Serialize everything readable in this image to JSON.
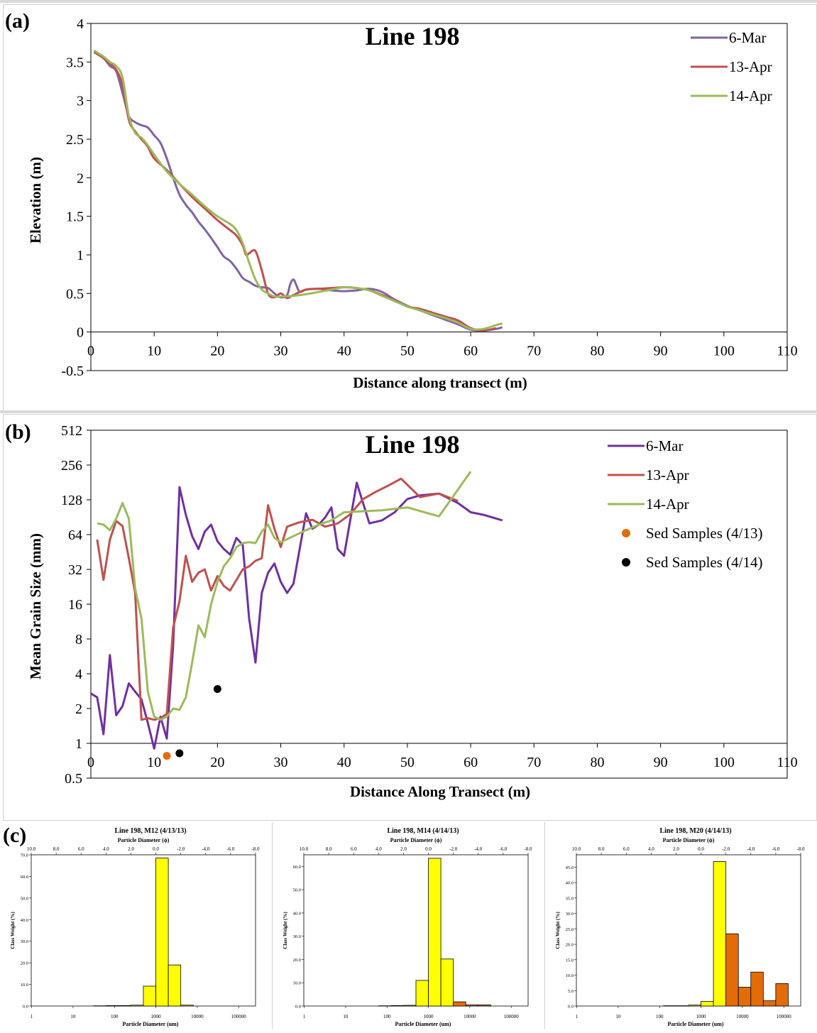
{
  "colors": {
    "mar6": "#8064a2",
    "apr13": "#c0504d",
    "apr14": "#9bbb59",
    "mar6_b": "#7030a0",
    "sed13": "#e36c09",
    "sed14": "#000000",
    "sand": "#ffff00",
    "gravel": "#e36c09"
  },
  "panel_a": {
    "label": "(a)",
    "chart_data": {
      "type": "line",
      "title": "Line 198",
      "xlabel": "Distance along transect (m)",
      "ylabel": "Elevation (m)",
      "xlim": [
        0,
        110
      ],
      "ylim": [
        -0.5,
        4
      ],
      "xticks": [
        "0",
        "10",
        "20",
        "30",
        "40",
        "50",
        "60",
        "70",
        "80",
        "90",
        "100",
        "110"
      ],
      "yticks": [
        "-0.5",
        "0",
        "0.5",
        "1",
        "1.5",
        "2",
        "2.5",
        "3",
        "3.5",
        "4"
      ],
      "legend_position": "top-right",
      "series": [
        {
          "name": "6-Mar",
          "color": "#8064a2",
          "x": [
            0.5,
            2,
            3,
            4,
            5,
            6,
            7,
            8,
            9,
            10,
            11,
            12,
            13,
            14,
            15,
            16,
            17,
            18,
            19,
            20,
            21,
            22,
            23,
            24,
            25,
            26,
            27,
            28,
            29,
            30,
            31,
            31.5,
            32,
            32.5,
            33,
            34,
            36,
            38,
            40,
            42,
            44,
            46,
            48,
            50,
            52,
            54,
            56,
            58,
            60,
            62,
            64,
            65
          ],
          "y": [
            3.63,
            3.55,
            3.45,
            3.38,
            3.1,
            2.8,
            2.72,
            2.68,
            2.65,
            2.55,
            2.45,
            2.25,
            2.0,
            1.78,
            1.65,
            1.55,
            1.43,
            1.33,
            1.22,
            1.1,
            0.98,
            0.92,
            0.82,
            0.7,
            0.65,
            0.6,
            0.58,
            0.57,
            0.5,
            0.45,
            0.48,
            0.62,
            0.68,
            0.6,
            0.52,
            0.55,
            0.56,
            0.54,
            0.53,
            0.54,
            0.56,
            0.52,
            0.42,
            0.34,
            0.28,
            0.22,
            0.16,
            0.1,
            0.03,
            0.02,
            0.04,
            0.06
          ]
        },
        {
          "name": "13-Apr",
          "color": "#c0504d",
          "x": [
            0.5,
            2,
            3,
            4,
            5,
            6,
            7,
            8,
            9,
            10,
            12,
            14,
            16,
            18,
            20,
            22,
            23,
            24,
            24.5,
            25,
            26,
            27,
            28,
            29,
            30,
            31,
            32,
            34,
            36,
            38,
            40,
            42,
            44,
            46,
            48,
            50,
            52,
            54,
            56,
            58,
            60,
            62,
            64
          ],
          "y": [
            3.63,
            3.55,
            3.48,
            3.4,
            3.2,
            2.75,
            2.6,
            2.5,
            2.4,
            2.25,
            2.1,
            1.92,
            1.75,
            1.6,
            1.45,
            1.32,
            1.25,
            1.12,
            1.0,
            1.02,
            1.05,
            0.8,
            0.5,
            0.45,
            0.5,
            0.44,
            0.48,
            0.55,
            0.56,
            0.57,
            0.58,
            0.57,
            0.54,
            0.48,
            0.41,
            0.33,
            0.3,
            0.25,
            0.2,
            0.15,
            0.05,
            0.02,
            0.05
          ]
        },
        {
          "name": "14-Apr",
          "color": "#9bbb59",
          "x": [
            0.5,
            2,
            3,
            4,
            5,
            6,
            7,
            8,
            9,
            10,
            12,
            14,
            16,
            18,
            20,
            22,
            23,
            24,
            25,
            26,
            27,
            28,
            29,
            30,
            32,
            34,
            36,
            38,
            40,
            42,
            44,
            46,
            48,
            50,
            52,
            54,
            56,
            58,
            60,
            62,
            64,
            65
          ],
          "y": [
            3.65,
            3.57,
            3.5,
            3.45,
            3.3,
            2.8,
            2.58,
            2.52,
            2.42,
            2.3,
            2.08,
            1.92,
            1.78,
            1.63,
            1.5,
            1.4,
            1.32,
            1.15,
            0.9,
            0.68,
            0.55,
            0.5,
            0.46,
            0.46,
            0.47,
            0.49,
            0.52,
            0.55,
            0.58,
            0.57,
            0.54,
            0.47,
            0.4,
            0.33,
            0.28,
            0.23,
            0.18,
            0.12,
            0.04,
            0.04,
            0.09,
            0.11
          ]
        }
      ]
    }
  },
  "panel_b": {
    "label": "(b)",
    "chart_data": {
      "type": "line",
      "title": "Line 198",
      "xlabel": "Distance Along Transect (m)",
      "ylabel": "Mean Grain Size (mm)",
      "xlim": [
        0,
        110
      ],
      "ylim": [
        0.5,
        512
      ],
      "yscale": "log2",
      "xticks": [
        "0",
        "10",
        "20",
        "30",
        "40",
        "50",
        "60",
        "70",
        "80",
        "90",
        "100",
        "110"
      ],
      "yticks": [
        "0.5",
        "1",
        "2",
        "4",
        "8",
        "16",
        "32",
        "64",
        "128",
        "256",
        "512"
      ],
      "legend_position": "top-right",
      "series": [
        {
          "name": "6-Mar",
          "color": "#7030a0",
          "x": [
            0,
            1,
            2,
            3,
            4,
            5,
            6,
            7,
            8,
            9,
            10,
            11,
            12,
            13,
            14,
            15,
            16,
            17,
            18,
            19,
            20,
            21,
            22,
            23,
            24,
            25,
            26,
            27,
            28,
            29,
            30,
            31,
            32,
            34,
            35,
            36,
            37,
            38,
            39,
            40,
            42,
            43,
            44,
            46,
            48,
            50,
            52,
            55,
            58,
            60,
            62,
            65
          ],
          "y": [
            2.7,
            2.5,
            1.2,
            5.8,
            1.75,
            2.1,
            3.3,
            2.8,
            2.4,
            1.5,
            0.9,
            1.7,
            1.1,
            7.0,
            165,
            95,
            62,
            48,
            68,
            78,
            56,
            48,
            43,
            60,
            52,
            12,
            5.0,
            20,
            30,
            36,
            25,
            20,
            24,
            98,
            72,
            78,
            90,
            110,
            48,
            42,
            180,
            120,
            80,
            85,
            100,
            130,
            140,
            145,
            120,
            100,
            95,
            85
          ]
        },
        {
          "name": "13-Apr",
          "color": "#c0504d",
          "x": [
            1,
            2,
            3,
            4,
            5,
            6,
            7,
            8,
            9,
            10,
            11,
            12,
            13,
            14,
            15,
            16,
            17,
            18,
            19,
            20,
            21,
            22,
            23,
            24,
            25,
            26,
            27,
            28,
            29,
            30,
            31,
            33,
            35,
            37,
            39,
            41,
            43,
            45,
            47,
            49,
            52,
            55,
            58
          ],
          "y": [
            58,
            26,
            58,
            84,
            76,
            40,
            20,
            1.6,
            1.65,
            1.6,
            1.65,
            1.8,
            10,
            17,
            42,
            25,
            30,
            32,
            21,
            28,
            23,
            21,
            26,
            32,
            34,
            38,
            40,
            115,
            72,
            50,
            75,
            82,
            86,
            75,
            80,
            96,
            130,
            150,
            170,
            195,
            135,
            145,
            125
          ]
        },
        {
          "name": "14-Apr",
          "color": "#9bbb59",
          "x": [
            1,
            2,
            3,
            4,
            5,
            6,
            7,
            8,
            9,
            10,
            11,
            12,
            13,
            14,
            15,
            16,
            17,
            18,
            19,
            20,
            21,
            22,
            23,
            24,
            25,
            26,
            27,
            28,
            29,
            30,
            32,
            34,
            36,
            38,
            40,
            43,
            46,
            50,
            55,
            60
          ],
          "y": [
            80,
            78,
            70,
            88,
            120,
            88,
            22,
            12,
            2.8,
            1.7,
            1.6,
            1.7,
            2.0,
            1.95,
            2.5,
            5.0,
            10.5,
            8.3,
            16,
            25,
            34,
            40,
            50,
            54,
            55,
            54,
            68,
            78,
            60,
            55,
            62,
            70,
            78,
            85,
            100,
            102,
            104,
            110,
            92,
            225
          ]
        },
        {
          "name": "Sed Samples (4/13)",
          "color": "#e36c09",
          "kind": "scatter",
          "x": [
            12
          ],
          "y": [
            0.78
          ]
        },
        {
          "name": "Sed Samples (4/14)",
          "color": "#000000",
          "kind": "scatter",
          "x": [
            14,
            20
          ],
          "y": [
            0.82,
            2.95
          ]
        }
      ]
    }
  },
  "panel_c": {
    "label": "(c)",
    "charts": [
      {
        "type": "bar",
        "title": "Line 198, M12 (4/13/13)",
        "top_axis_label": "Particle Diameter (ϕ)",
        "xlabel": "Particle Diameter (um)",
        "ylabel": "Class Weight (%)",
        "top_ticks": [
          "10.0",
          "8.0",
          "6.0",
          "4.0",
          "2.0",
          "0.0",
          "-2.0",
          "-4.0",
          "-6.0",
          "-8.0"
        ],
        "bottom_ticks": [
          "1",
          "10",
          "100",
          "1000",
          "10000",
          "100000"
        ],
        "yticks": [
          "0.0",
          "10.0",
          "20.0",
          "30.0",
          "40.0",
          "50.0",
          "60.0",
          "70.0"
        ],
        "ylim": [
          0,
          70
        ],
        "bins_phi": [
          5,
          4,
          3,
          2,
          1,
          0,
          -1,
          -2
        ],
        "values": [
          0.1,
          0.2,
          0.2,
          0.4,
          9.2,
          68.5,
          19.0,
          0.4
        ],
        "kinds": [
          "sand",
          "sand",
          "sand",
          "sand",
          "sand",
          "sand",
          "sand",
          "sand"
        ]
      },
      {
        "type": "bar",
        "title": "Line 198, M14 (4/14/13)",
        "top_axis_label": "Particle Diameter (ϕ)",
        "xlabel": "Particle Diameter (um)",
        "ylabel": "Class Weight (%)",
        "top_ticks": [
          "10.0",
          "8.0",
          "6.0",
          "4.0",
          "2.0",
          "0.0",
          "-2.0",
          "-4.0",
          "-6.0",
          "-8.0"
        ],
        "bottom_ticks": [
          "1",
          "10",
          "100",
          "1000",
          "10000",
          "100000"
        ],
        "yticks": [
          "0.0",
          "10.0",
          "20.0",
          "30.0",
          "40.0",
          "50.0",
          "60.0"
        ],
        "ylim": [
          0,
          65
        ],
        "bins_phi": [
          4,
          3,
          2,
          1,
          0,
          -1,
          -2,
          -3,
          -4
        ],
        "values": [
          0.1,
          0.2,
          0.3,
          11.0,
          63.5,
          20.2,
          1.8,
          0.5,
          0.5
        ],
        "kinds": [
          "sand",
          "sand",
          "sand",
          "sand",
          "sand",
          "sand",
          "gravel",
          "gravel",
          "gravel"
        ]
      },
      {
        "type": "bar",
        "title": "Line 198, M20 (4/14/13)",
        "top_axis_label": "Particle Diameter (ϕ)",
        "xlabel": "Particle Diameter (um)",
        "ylabel": "Class Weight (%)",
        "top_ticks": [
          "10.0",
          "8.0",
          "6.0",
          "4.0",
          "2.0",
          "0.0",
          "-2.0",
          "-4.0",
          "-6.0",
          "-8.0"
        ],
        "bottom_ticks": [
          "1",
          "10",
          "100",
          "1000",
          "10000",
          "100000"
        ],
        "yticks": [
          "0.0",
          "5.0",
          "10.0",
          "15.0",
          "20.0",
          "25.0",
          "30.0",
          "35.0",
          "40.0",
          "45.0"
        ],
        "ylim": [
          0,
          49
        ],
        "bins_phi": [
          3,
          2,
          1,
          0,
          -1,
          -2,
          -3,
          -4,
          -5,
          -6
        ],
        "values": [
          0.1,
          0.1,
          0.3,
          1.5,
          46.8,
          23.4,
          6.1,
          11.0,
          1.7,
          7.3
        ],
        "kinds": [
          "sand",
          "sand",
          "sand",
          "sand",
          "sand",
          "gravel",
          "gravel",
          "gravel",
          "gravel",
          "gravel"
        ]
      }
    ]
  }
}
